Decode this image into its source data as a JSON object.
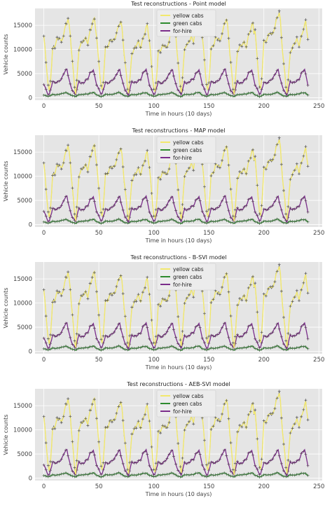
{
  "figure": {
    "legend_labels": [
      "yellow cabs",
      "green cabs",
      "for-hire"
    ],
    "series_colors": {
      "yellow cabs": "#f2e86d",
      "green cabs": "#2e8b2e",
      "for-hire": "#7b2d8b",
      "observed": "#666666"
    },
    "plot_background": "#e5e5e5",
    "grid_color": "#ffffff"
  },
  "chart_data": [
    {
      "type": "line",
      "title": "Test reconstructions - Point model",
      "xlabel": "Time in hours (10 days)",
      "ylabel": "Vehicle counts",
      "xlim": [
        -8,
        253
      ],
      "ylim": [
        -500,
        18500
      ],
      "xticks": [
        0,
        50,
        100,
        150,
        200,
        250
      ],
      "yticks": [
        0,
        5000,
        10000,
        15000
      ],
      "grid": true,
      "legend_position": "top-center",
      "series": [
        {
          "name": "yellow cabs",
          "key": "yellow",
          "marker": "plus"
        },
        {
          "name": "green cabs",
          "key": "green",
          "marker": "plus"
        },
        {
          "name": "for-hire",
          "key": "fhv",
          "marker": "plus"
        }
      ],
      "day_peaks": [
        16300,
        16400,
        16200,
        14900,
        14600,
        16500,
        16400,
        15300,
        18000,
        15600
      ],
      "spike_x": 214,
      "spike_y": 18000
    },
    {
      "type": "line",
      "title": "Test reconstructions - MAP model",
      "xlabel": "Time in hours (10 days)",
      "ylabel": "Vehicle counts",
      "xlim": [
        -8,
        253
      ],
      "ylim": [
        -500,
        18500
      ],
      "xticks": [
        0,
        50,
        100,
        150,
        200,
        250
      ],
      "yticks": [
        0,
        5000,
        10000,
        15000
      ],
      "grid": true,
      "legend_position": "top-center",
      "series": [
        {
          "name": "yellow cabs",
          "key": "yellow",
          "marker": "plus"
        },
        {
          "name": "green cabs",
          "key": "green",
          "marker": "plus"
        },
        {
          "name": "for-hire",
          "key": "fhv",
          "marker": "plus"
        }
      ],
      "day_peaks": [
        16300,
        16400,
        16200,
        14900,
        14600,
        16500,
        16400,
        15300,
        18000,
        15600
      ],
      "spike_x": 214,
      "spike_y": 18000
    },
    {
      "type": "line",
      "title": "Test reconstructions - B-SVI model",
      "xlabel": "Time in hours (10 days)",
      "ylabel": "Vehicle counts",
      "xlim": [
        -8,
        253
      ],
      "ylim": [
        -500,
        18500
      ],
      "xticks": [
        0,
        50,
        100,
        150,
        200,
        250
      ],
      "yticks": [
        0,
        5000,
        10000,
        15000
      ],
      "grid": true,
      "legend_position": "top-center",
      "series": [
        {
          "name": "yellow cabs",
          "key": "yellow",
          "marker": "plus"
        },
        {
          "name": "green cabs",
          "key": "green",
          "marker": "plus"
        },
        {
          "name": "for-hire",
          "key": "fhv",
          "marker": "plus"
        }
      ],
      "day_peaks": [
        16300,
        16400,
        16200,
        14900,
        14600,
        16500,
        16400,
        15300,
        18000,
        15600
      ],
      "spike_x": 214,
      "spike_y": 18000
    },
    {
      "type": "line",
      "title": "Test reconstructions - AEB-SVI model",
      "xlabel": "Time in hours (10 days)",
      "ylabel": "Vehicle counts",
      "xlim": [
        -8,
        253
      ],
      "ylim": [
        -500,
        18500
      ],
      "xticks": [
        0,
        50,
        100,
        150,
        200,
        250
      ],
      "yticks": [
        0,
        5000,
        10000,
        15000
      ],
      "grid": true,
      "legend_position": "top-center",
      "series": [
        {
          "name": "yellow cabs",
          "key": "yellow",
          "marker": "plus"
        },
        {
          "name": "green cabs",
          "key": "green",
          "marker": "plus"
        },
        {
          "name": "for-hire",
          "key": "fhv",
          "marker": "plus"
        }
      ],
      "day_peaks": [
        16300,
        16400,
        16200,
        14900,
        14600,
        16500,
        16400,
        15300,
        18000,
        15600
      ],
      "spike_x": 214,
      "spike_y": 18000
    }
  ]
}
